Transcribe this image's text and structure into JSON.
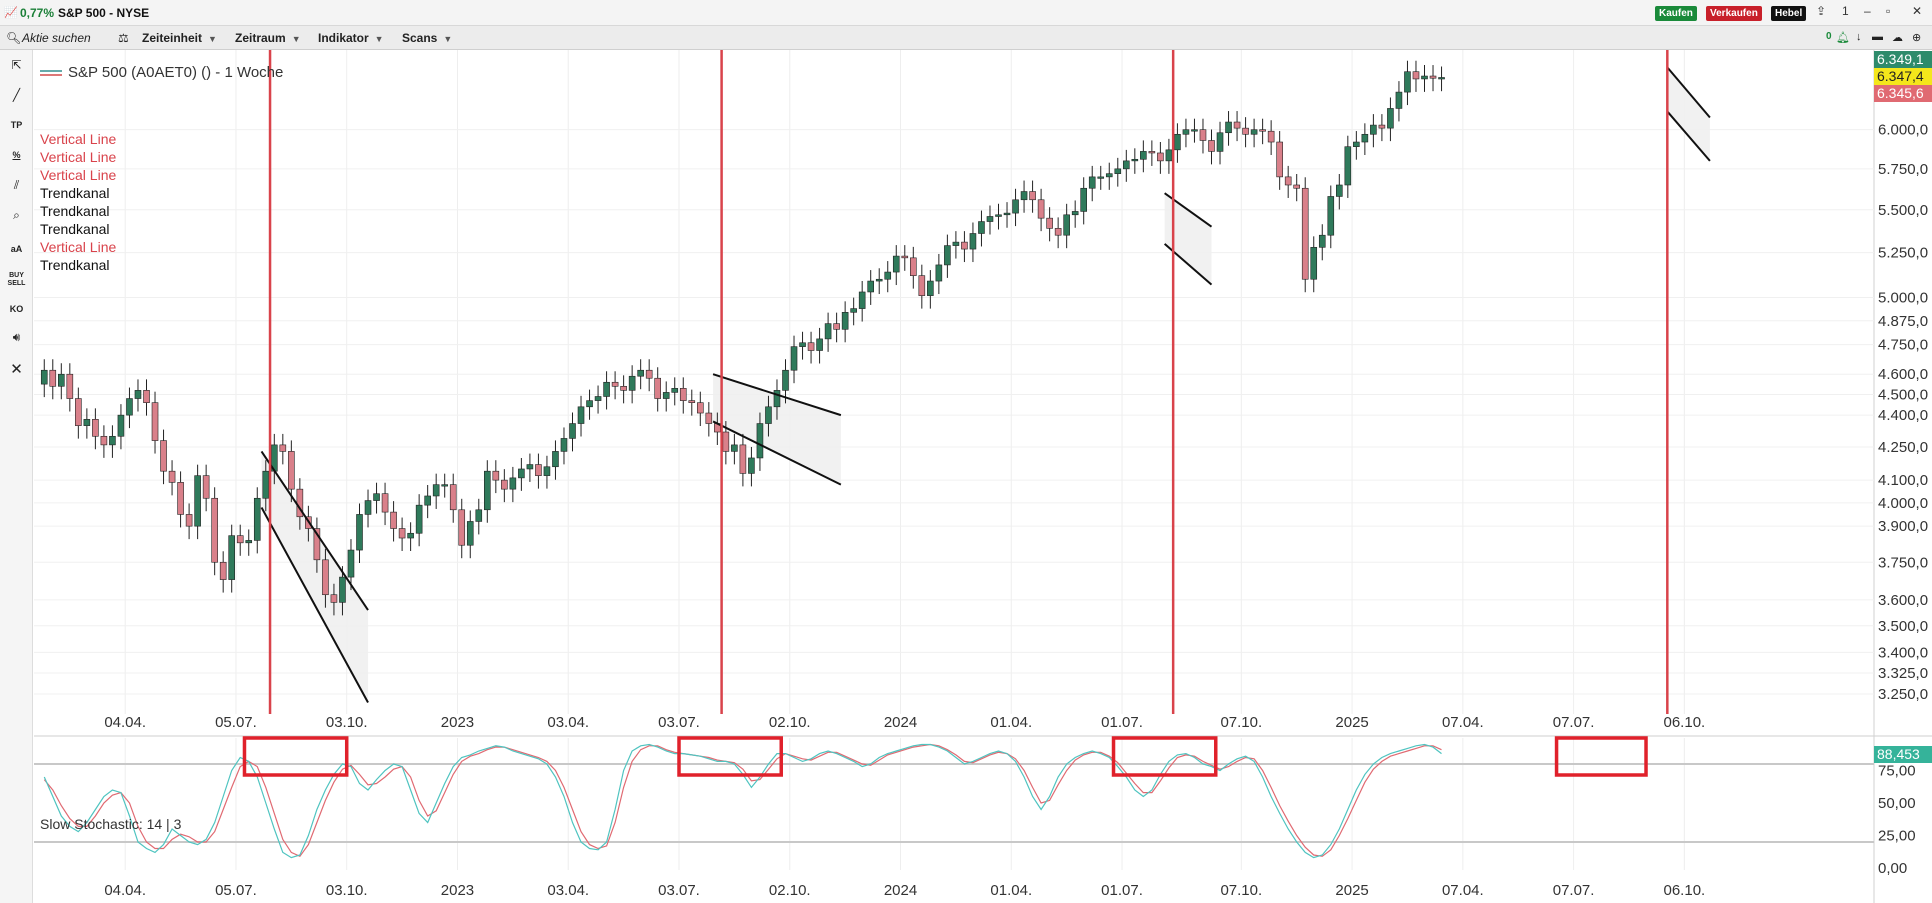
{
  "window": {
    "change": "0,77%",
    "title": "S&P 500 - NYSE",
    "buttons": [
      {
        "label": "Kaufen",
        "color": "#1a8a3a"
      },
      {
        "label": "Verkaufen",
        "color": "#c8202a"
      },
      {
        "label": "Hebel",
        "color": "#111111"
      }
    ],
    "counter": "1"
  },
  "toolbar": {
    "search_placeholder": "Aktie suchen",
    "menus": [
      "Zeiteinheit",
      "Zeitraum",
      "Indikator",
      "Scans"
    ],
    "right_count": "0"
  },
  "sidebar": {
    "icons": [
      "cursor-icon",
      "line-draw-icon",
      "tp-icon",
      "percent-icon",
      "channel-icon",
      "zoom-icon",
      "text-size-icon",
      "buy-sell-icon",
      "ko-icon",
      "sound-icon",
      "close-icon"
    ],
    "labels": {
      "tp": "TP",
      "aa": "aA",
      "buysell": "BUY SELL",
      "ko": "KO",
      "close": "✕"
    }
  },
  "legend": {
    "title": "S&P 500 (A0AET0) () - 1 Woche"
  },
  "objects": [
    {
      "label": "Vertical Line",
      "color": "red"
    },
    {
      "label": "Vertical Line",
      "color": "red"
    },
    {
      "label": "Vertical Line",
      "color": "red"
    },
    {
      "label": "Trendkanal",
      "color": "black"
    },
    {
      "label": "Trendkanal",
      "color": "black"
    },
    {
      "label": "Trendkanal",
      "color": "black"
    },
    {
      "label": "Vertical Line",
      "color": "red"
    },
    {
      "label": "Trendkanal",
      "color": "black"
    }
  ],
  "price_badges": [
    {
      "label": "6.349,1",
      "bg": "#2e8b6b",
      "fg": "#ffffff"
    },
    {
      "label": "6.347,4",
      "bg": "#f4e61b",
      "fg": "#222222"
    },
    {
      "label": "6.345,6",
      "bg": "#e06a72",
      "fg": "#ffffff"
    },
    {
      "label": "88,453",
      "bg": "#35b39a",
      "fg": "#ffffff"
    }
  ],
  "stochastic": {
    "label": "Slow Stochastic: 14 | 3",
    "k_color": "#4fc4c0",
    "d_color": "#e06a72"
  },
  "chart_data": {
    "type": "candlestick",
    "timeframe": "1 Woche",
    "colors": {
      "up": "#2f7a5b",
      "down": "#d9808a",
      "vline": "#d9434b",
      "channel": "#111111",
      "stoch_box": "#e0212b"
    },
    "price_axis_labels": [
      "6.000,0",
      "5.750,0",
      "5.500,0",
      "5.250,0",
      "5.000,0",
      "4.875,0",
      "4.750,0",
      "4.600,0",
      "4.500,0",
      "4.400,0",
      "4.250,0",
      "4.100,0",
      "4.000,0",
      "3.900,0",
      "3.750,0",
      "3.600,0",
      "3.500,0",
      "3.400,0",
      "3.325,0",
      "3.250,0"
    ],
    "price_ticks": [
      6000,
      5750,
      5500,
      5250,
      5000,
      4875,
      4750,
      4600,
      4500,
      4400,
      4250,
      4100,
      4000,
      3900,
      3750,
      3600,
      3500,
      3400,
      3325,
      3250
    ],
    "price_range": [
      3180,
      6500
    ],
    "stoch_axis_labels": [
      "75,00",
      "50,00",
      "25,00",
      "0,00"
    ],
    "stoch_ticks": [
      75,
      50,
      25,
      0
    ],
    "stoch_range": [
      0,
      100
    ],
    "stoch_levels": [
      80,
      20
    ],
    "x_tick_labels": [
      "04.04.",
      "05.07.",
      "03.10.",
      "2023",
      "03.04.",
      "03.07.",
      "02.10.",
      "2024",
      "01.04.",
      "01.07.",
      "07.10.",
      "2025",
      "07.04.",
      "07.07.",
      "06.10."
    ],
    "x_tick_weeks": [
      10,
      23,
      36,
      49,
      62,
      75,
      88,
      101,
      114,
      127,
      141,
      154,
      167,
      180,
      193
    ],
    "vertical_line_weeks": [
      27,
      80,
      133,
      191
    ],
    "channels": [
      {
        "w1": 26,
        "p1_top": 4230,
        "p1_bot": 3980,
        "w2": 38.5,
        "p2_top": 3560,
        "p2_bot": 3220
      },
      {
        "w1": 79,
        "p1_top": 4600,
        "p1_bot": 4370,
        "w2": 94,
        "p2_top": 4400,
        "p2_bot": 4080
      },
      {
        "w1": 132,
        "p1_top": 5600,
        "p1_bot": 5300,
        "w2": 137.5,
        "p2_top": 5400,
        "p2_bot": 5070
      },
      {
        "w1": 191,
        "p1_top": 6420,
        "p1_bot": 6120,
        "w2": 196,
        "p2_top": 6080,
        "p2_bot": 5800
      }
    ],
    "stoch_boxes": [
      {
        "w1": 24,
        "w2": 36
      },
      {
        "w1": 75,
        "w2": 87
      },
      {
        "w1": 126,
        "w2": 138
      },
      {
        "w1": 178,
        "w2": 188.5
      }
    ],
    "weekly_closes": [
      4620,
      4540,
      4600,
      4480,
      4350,
      4380,
      4300,
      4260,
      4300,
      4400,
      4480,
      4520,
      4460,
      4280,
      4140,
      4090,
      3950,
      3900,
      4120,
      4020,
      3750,
      3680,
      3860,
      3830,
      3840,
      4020,
      4140,
      4260,
      4230,
      4060,
      3940,
      3890,
      3760,
      3620,
      3590,
      3690,
      3800,
      3950,
      4010,
      4040,
      3960,
      3890,
      3850,
      3870,
      3990,
      4030,
      4080,
      4080,
      3970,
      3820,
      3920,
      3970,
      4140,
      4100,
      4060,
      4110,
      4150,
      4170,
      4120,
      4160,
      4230,
      4290,
      4360,
      4440,
      4470,
      4490,
      4560,
      4540,
      4520,
      4590,
      4620,
      4580,
      4480,
      4510,
      4530,
      4470,
      4460,
      4410,
      4360,
      4320,
      4230,
      4260,
      4130,
      4200,
      4360,
      4440,
      4520,
      4620,
      4740,
      4760,
      4720,
      4780,
      4860,
      4830,
      4920,
      4940,
      5030,
      5090,
      5100,
      5140,
      5230,
      5220,
      5120,
      5010,
      5090,
      5180,
      5290,
      5310,
      5270,
      5360,
      5430,
      5460,
      5470,
      5480,
      5560,
      5610,
      5560,
      5450,
      5390,
      5350,
      5470,
      5490,
      5630,
      5700,
      5700,
      5720,
      5750,
      5800,
      5810,
      5860,
      5850,
      5800,
      5870,
      5970,
      6000,
      6000,
      5930,
      5860,
      5980,
      6050,
      6010,
      5970,
      6000,
      5990,
      5920,
      5700,
      5650,
      5630,
      5100,
      5280,
      5350,
      5580,
      5650,
      5890,
      5920,
      5970,
      6030,
      6010,
      6140,
      6250,
      6390,
      6340,
      6360,
      6345,
      6350
    ],
    "stoch_k": [
      70,
      55,
      40,
      32,
      28,
      35,
      45,
      55,
      60,
      58,
      40,
      20,
      15,
      12,
      18,
      30,
      25,
      20,
      18,
      22,
      35,
      55,
      75,
      85,
      82,
      70,
      50,
      30,
      12,
      8,
      10,
      25,
      45,
      60,
      72,
      80,
      78,
      65,
      60,
      68,
      75,
      80,
      78,
      60,
      42,
      35,
      50,
      65,
      78,
      85,
      87,
      90,
      92,
      94,
      93,
      90,
      88,
      86,
      84,
      80,
      70,
      55,
      35,
      20,
      15,
      14,
      20,
      45,
      75,
      90,
      94,
      95,
      93,
      90,
      88,
      88,
      87,
      86,
      84,
      82,
      82,
      80,
      72,
      62,
      70,
      80,
      88,
      88,
      85,
      82,
      84,
      88,
      90,
      88,
      85,
      82,
      78,
      80,
      85,
      88,
      90,
      92,
      94,
      95,
      95,
      93,
      90,
      85,
      80,
      82,
      85,
      88,
      90,
      88,
      82,
      70,
      55,
      45,
      55,
      70,
      80,
      85,
      88,
      90,
      88,
      85,
      78,
      70,
      60,
      55,
      60,
      72,
      82,
      87,
      88,
      85,
      80,
      78,
      75,
      80,
      84,
      86,
      82,
      70,
      55,
      42,
      30,
      20,
      12,
      8,
      10,
      18,
      30,
      45,
      60,
      72,
      80,
      85,
      88,
      90,
      92,
      94,
      95,
      93,
      88
    ],
    "stoch_d": [
      68,
      60,
      48,
      38,
      32,
      32,
      40,
      50,
      56,
      58,
      50,
      32,
      20,
      15,
      15,
      22,
      26,
      24,
      20,
      20,
      28,
      45,
      62,
      78,
      82,
      78,
      62,
      42,
      22,
      12,
      9,
      18,
      35,
      52,
      66,
      76,
      79,
      72,
      64,
      65,
      70,
      76,
      78,
      70,
      52,
      40,
      44,
      58,
      72,
      82,
      86,
      88,
      91,
      93,
      93,
      91,
      89,
      87,
      85,
      82,
      75,
      62,
      45,
      28,
      18,
      15,
      17,
      35,
      62,
      82,
      91,
      94,
      94,
      91,
      89,
      88,
      87,
      86,
      85,
      83,
      82,
      81,
      76,
      67,
      68,
      76,
      84,
      88,
      86,
      84,
      83,
      86,
      89,
      89,
      86,
      83,
      80,
      79,
      83,
      87,
      89,
      91,
      93,
      94,
      95,
      94,
      91,
      87,
      82,
      81,
      84,
      87,
      89,
      88,
      84,
      75,
      62,
      50,
      52,
      64,
      75,
      83,
      87,
      89,
      89,
      86,
      81,
      73,
      65,
      58,
      58,
      67,
      77,
      85,
      87,
      86,
      82,
      79,
      76,
      78,
      82,
      85,
      84,
      75,
      62,
      48,
      36,
      25,
      16,
      10,
      9,
      14,
      25,
      38,
      52,
      66,
      76,
      82,
      86,
      88,
      90,
      92,
      94,
      94,
      91
    ]
  }
}
